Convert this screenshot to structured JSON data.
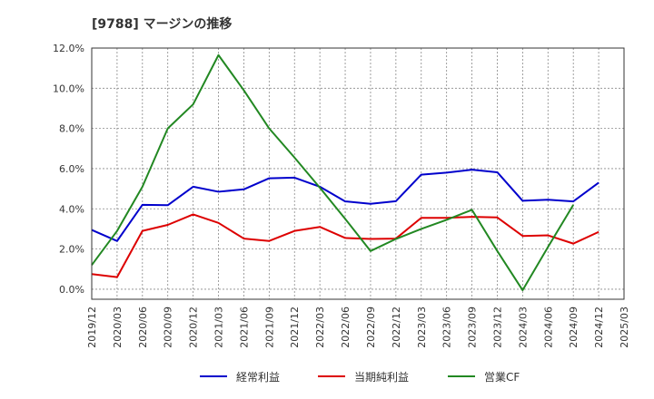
{
  "chart_data": {
    "type": "line",
    "title": "[9788]  マージンの推移",
    "xlabel": "",
    "ylabel": "",
    "ylim": [
      -0.5,
      12.0
    ],
    "yticks": [
      "0.0%",
      "2.0%",
      "4.0%",
      "6.0%",
      "8.0%",
      "10.0%",
      "12.0%"
    ],
    "grid": true,
    "legend_position": "bottom",
    "categories": [
      "2019/12",
      "2020/03",
      "2020/06",
      "2020/09",
      "2020/12",
      "2021/03",
      "2021/06",
      "2021/09",
      "2021/12",
      "2022/03",
      "2022/06",
      "2022/09",
      "2022/12",
      "2023/03",
      "2023/06",
      "2023/09",
      "2023/12",
      "2024/03",
      "2024/06",
      "2024/09",
      "2024/12",
      "2025/03"
    ],
    "series": [
      {
        "name": "経常利益",
        "color": "#0000cc",
        "values": [
          2.95,
          2.4,
          4.2,
          4.18,
          5.1,
          4.85,
          4.97,
          5.52,
          5.55,
          5.1,
          4.37,
          4.25,
          4.38,
          5.7,
          5.8,
          5.95,
          5.82,
          4.4,
          4.45,
          4.37,
          5.3,
          null
        ]
      },
      {
        "name": "当期純利益",
        "color": "#dd0000",
        "values": [
          0.75,
          0.6,
          2.9,
          3.2,
          3.72,
          3.3,
          2.52,
          2.4,
          2.9,
          3.1,
          2.55,
          2.5,
          2.52,
          3.55,
          3.55,
          3.6,
          3.57,
          2.65,
          2.68,
          2.27,
          2.85,
          null
        ]
      },
      {
        "name": "営業CF",
        "color": "#228822",
        "values": [
          1.2,
          2.9,
          5.1,
          8.0,
          9.2,
          11.65,
          9.9,
          8.0,
          6.55,
          5.05,
          3.5,
          1.9,
          2.5,
          3.0,
          3.45,
          3.95,
          1.9,
          -0.05,
          2.1,
          4.2,
          null,
          null
        ]
      }
    ]
  }
}
